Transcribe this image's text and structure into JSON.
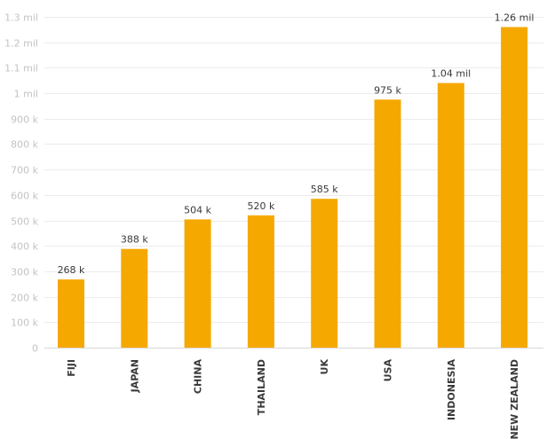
{
  "chart_data": {
    "type": "bar",
    "title": "",
    "xlabel": "",
    "ylabel": "",
    "categories": [
      "FIJI",
      "JAPAN",
      "CHINA",
      "THAILAND",
      "UK",
      "USA",
      "INDONESIA",
      "NEW ZEALAND"
    ],
    "values": [
      268000,
      388000,
      504000,
      520000,
      585000,
      975000,
      1040000,
      1260000
    ],
    "data_labels": [
      "268 k",
      "388 k",
      "504 k",
      "520 k",
      "585 k",
      "975 k",
      "1.04 mil",
      "1.26 mil"
    ],
    "ylim": [
      0,
      1300000
    ],
    "yticks": [
      0,
      100000,
      200000,
      300000,
      400000,
      500000,
      600000,
      700000,
      800000,
      900000,
      1000000,
      1100000,
      1200000,
      1300000
    ],
    "ytick_labels": [
      "0",
      "100 k",
      "200 k",
      "300 k",
      "400 k",
      "500 k",
      "600 k",
      "700 k",
      "800 k",
      "900 k",
      "1 mil",
      "1.1 mil",
      "1.2 mil",
      "1.3 mil"
    ],
    "grid": true,
    "legend": "none",
    "bar_color": "#f5a800"
  }
}
